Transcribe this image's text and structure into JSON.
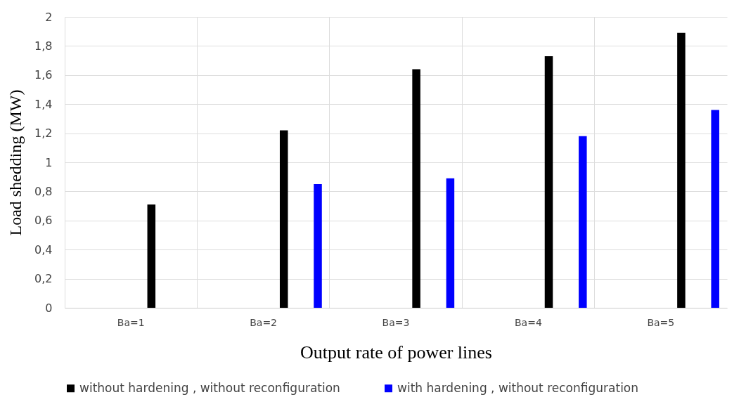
{
  "chart_data": {
    "type": "bar",
    "xlabel": "Output rate of power lines",
    "ylabel": "Load shedding (MW)",
    "categories": [
      "Ba=1",
      "Ba=2",
      "Ba=3",
      "Ba=4",
      "Ba=5"
    ],
    "series": [
      {
        "name": "without hardening , without reconfiguration",
        "color": "#000000",
        "values": [
          0.71,
          1.22,
          1.64,
          1.73,
          1.89
        ]
      },
      {
        "name": "with hardening , without reconfiguration",
        "color": "#0000ff",
        "values": [
          0,
          0.85,
          0.89,
          1.18,
          1.36
        ]
      }
    ],
    "ylim": [
      0,
      2
    ],
    "yticks": [
      0,
      {
        "value": 0.2,
        "label": "0,2"
      },
      {
        "value": 0.4,
        "label": "0,4"
      },
      {
        "value": 0.6,
        "label": "0,6"
      },
      {
        "value": 0.8,
        "label": "0,8"
      },
      1,
      {
        "value": 1.2,
        "label": "1,2"
      },
      {
        "value": 1.4,
        "label": "1,4"
      },
      {
        "value": 1.6,
        "label": "1,6"
      },
      {
        "value": 1.8,
        "label": "1,8"
      },
      2
    ],
    "grid": true,
    "legend": "bottom"
  }
}
